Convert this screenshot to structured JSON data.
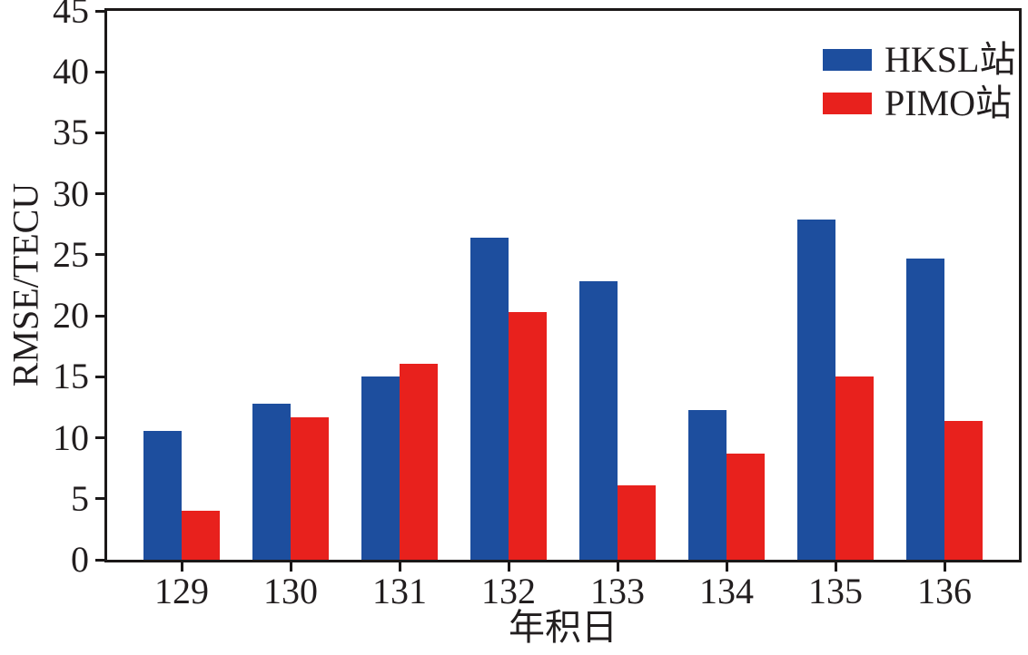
{
  "chart_data": {
    "type": "bar",
    "title": "",
    "xlabel": "年积日",
    "ylabel": "RMSE/TECU",
    "categories": [
      "129",
      "130",
      "131",
      "132",
      "133",
      "134",
      "135",
      "136"
    ],
    "series": [
      {
        "name": "HKSL站",
        "color": "#1d4e9e",
        "values": [
          10.6,
          12.8,
          15.0,
          26.4,
          22.8,
          12.3,
          27.9,
          24.7
        ]
      },
      {
        "name": "PIMO站",
        "color": "#e8211d",
        "values": [
          4.0,
          11.7,
          16.1,
          20.3,
          6.1,
          8.7,
          15.0,
          11.4
        ]
      }
    ],
    "ylim": [
      0,
      45
    ],
    "yticks": [
      "0",
      "5",
      "10",
      "15",
      "20",
      "25",
      "30",
      "35",
      "40",
      "45"
    ],
    "grid": false,
    "legend_position": "top-right"
  },
  "colors": {
    "axis": "#1b1818",
    "text": "#221e1f",
    "background": "#ffffff"
  }
}
